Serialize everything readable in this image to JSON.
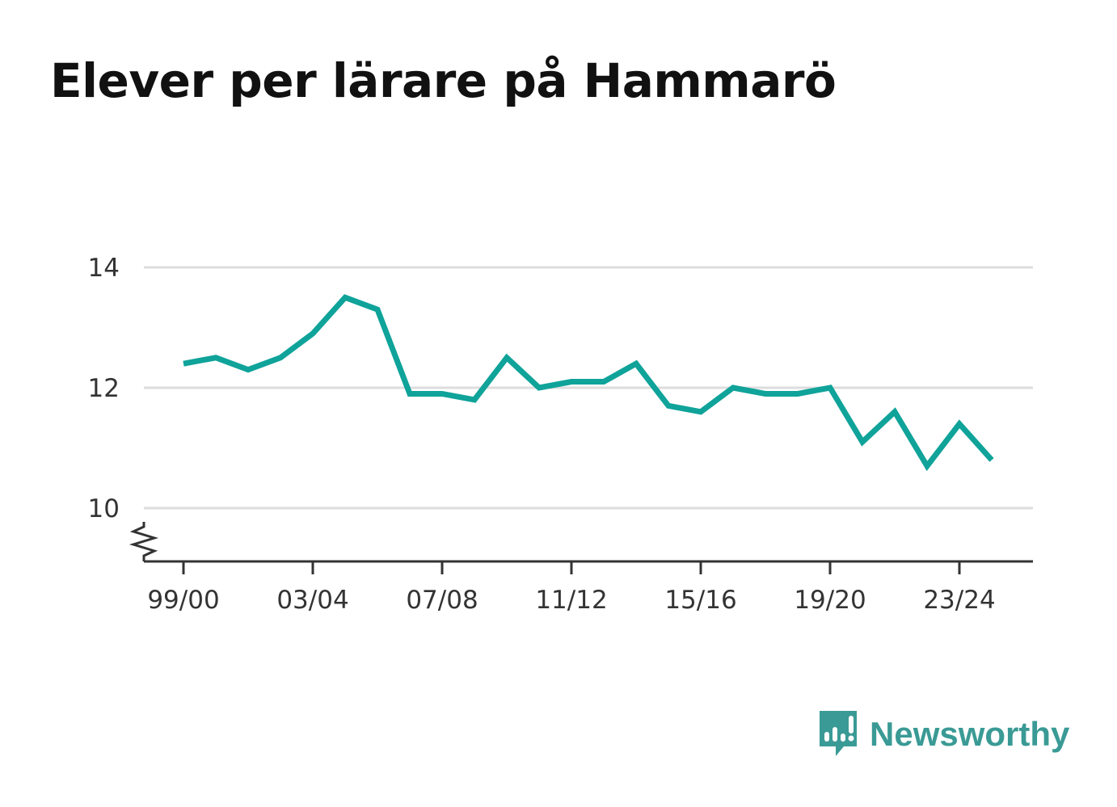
{
  "chart_data": {
    "type": "line",
    "title": "Elever per lärare på Hammarö",
    "xlabel": "",
    "ylabel": "",
    "ylim": [
      9.1,
      14
    ],
    "yticks": [
      10,
      12,
      14
    ],
    "axis_break": true,
    "grid": true,
    "x": [
      "99/00",
      "00/01",
      "01/02",
      "02/03",
      "03/04",
      "04/05",
      "05/06",
      "06/07",
      "07/08",
      "08/09",
      "09/10",
      "10/11",
      "11/12",
      "12/13",
      "13/14",
      "14/15",
      "15/16",
      "16/17",
      "17/18",
      "18/19",
      "19/20",
      "20/21",
      "21/22",
      "22/23",
      "23/24",
      "24/25"
    ],
    "xtick_labels": [
      "99/00",
      "03/04",
      "07/08",
      "11/12",
      "15/16",
      "19/20",
      "23/24"
    ],
    "series": [
      {
        "color": "#0fa39a",
        "values": [
          12.4,
          12.5,
          12.3,
          12.5,
          12.9,
          13.5,
          13.3,
          11.9,
          11.9,
          11.8,
          12.5,
          12.0,
          12.1,
          12.1,
          12.4,
          11.7,
          11.6,
          12.0,
          11.9,
          11.9,
          12.0,
          11.1,
          11.6,
          10.7,
          11.4,
          10.8
        ]
      }
    ]
  },
  "brand": {
    "name": "Newsworthy",
    "color": "#3a9a95",
    "icon": "bar-chart-speech-bubble-icon"
  }
}
